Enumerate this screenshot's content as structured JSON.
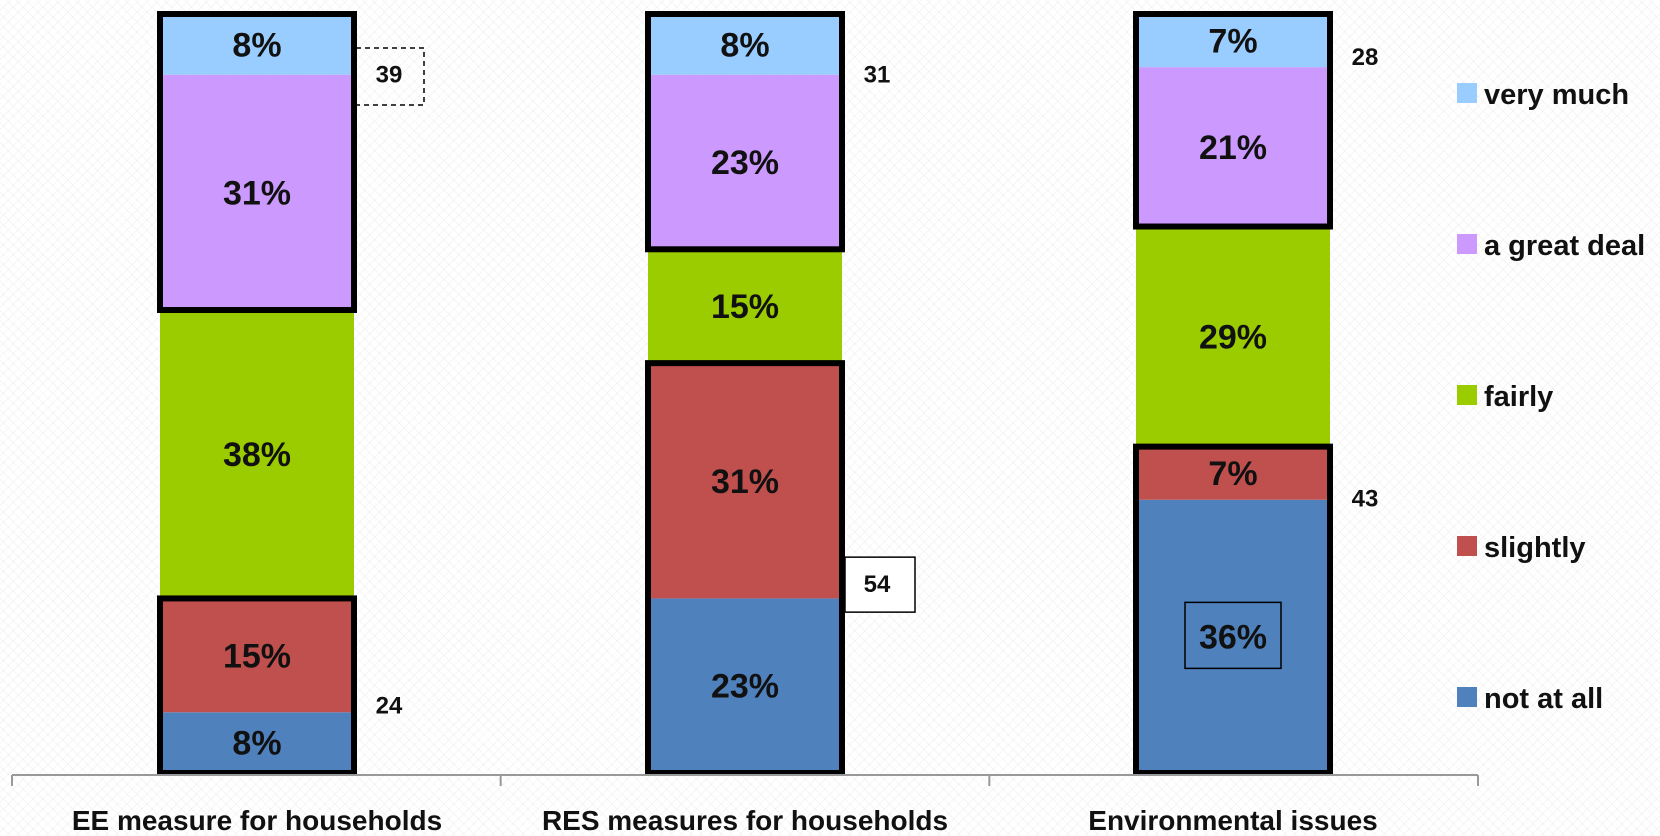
{
  "chart_data": {
    "type": "bar",
    "stacked": true,
    "categories": [
      "EE measure for households",
      "RES measures for households",
      "Environmental issues"
    ],
    "series": [
      {
        "name": "not at all",
        "color": "#4f81bd",
        "values": [
          8,
          23,
          36
        ]
      },
      {
        "name": "slightly",
        "color": "#c0504d",
        "values": [
          15,
          31,
          7
        ]
      },
      {
        "name": "fairly",
        "color": "#9bcc00",
        "values": [
          38,
          15,
          29
        ]
      },
      {
        "name": "a great deal",
        "color": "#cc99ff",
        "values": [
          31,
          23,
          21
        ]
      },
      {
        "name": "very much",
        "color": "#99ccff",
        "values": [
          8,
          8,
          7
        ]
      }
    ],
    "annotations": {
      "top_sums": [
        "39",
        "31",
        "28"
      ],
      "bottom_sums": [
        "24",
        "54",
        "43"
      ]
    },
    "ylim": [
      0,
      100
    ],
    "grid": false,
    "legend_position": "right",
    "legend_order": [
      "very much",
      "a great deal",
      "fairly",
      "slightly",
      "not at all"
    ]
  }
}
